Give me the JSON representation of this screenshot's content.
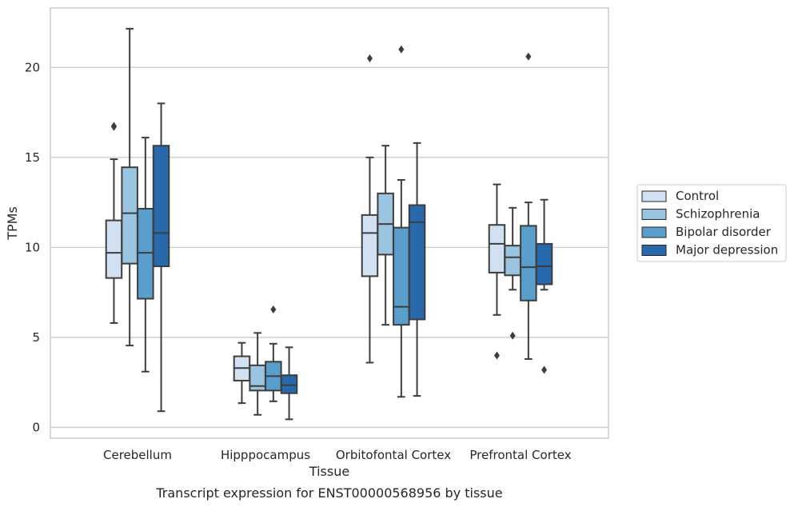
{
  "chart_data": {
    "type": "box",
    "title": "Transcript expression for ENST00000568956 by tissue",
    "xlabel": "Tissue",
    "ylabel": "TPMs",
    "ylim": [
      -0.6,
      23.3
    ],
    "yticks": [
      0,
      5,
      10,
      15,
      20
    ],
    "grid": "horizontal",
    "legend_position": "right",
    "categories": [
      "Cerebellum",
      "Hipppocampus",
      "Orbitofontal Cortex",
      "Prefrontal Cortex"
    ],
    "series": [
      {
        "name": "Control",
        "color": "#d1e1f1",
        "boxes": [
          {
            "whislo": 5.8,
            "q1": 8.3,
            "med": 9.7,
            "q3": 11.5,
            "whishi": 14.9,
            "fliers": [
              16.7,
              16.75
            ]
          },
          {
            "whislo": 1.35,
            "q1": 2.6,
            "med": 3.3,
            "q3": 3.95,
            "whishi": 4.7,
            "fliers": []
          },
          {
            "whislo": 3.6,
            "q1": 8.4,
            "med": 10.8,
            "q3": 11.8,
            "whishi": 15.0,
            "fliers": [
              20.5
            ]
          },
          {
            "whislo": 6.25,
            "q1": 8.6,
            "med": 10.2,
            "q3": 11.25,
            "whishi": 13.5,
            "fliers": [
              4.0
            ]
          }
        ]
      },
      {
        "name": "Schizophrenia",
        "color": "#9ac4e0",
        "boxes": [
          {
            "whislo": 4.55,
            "q1": 9.1,
            "med": 11.9,
            "q3": 14.45,
            "whishi": 22.15,
            "fliers": []
          },
          {
            "whislo": 0.7,
            "q1": 2.05,
            "med": 2.3,
            "q3": 3.45,
            "whishi": 5.25,
            "fliers": []
          },
          {
            "whislo": 5.7,
            "q1": 9.6,
            "med": 11.3,
            "q3": 13.0,
            "whishi": 15.65,
            "fliers": []
          },
          {
            "whislo": 7.65,
            "q1": 8.45,
            "med": 9.45,
            "q3": 10.1,
            "whishi": 12.2,
            "fliers": [
              5.1
            ]
          }
        ]
      },
      {
        "name": "Bipolar disorder",
        "color": "#5a9ecc",
        "boxes": [
          {
            "whislo": 3.1,
            "q1": 7.15,
            "med": 9.7,
            "q3": 12.15,
            "whishi": 16.1,
            "fliers": []
          },
          {
            "whislo": 1.45,
            "q1": 2.05,
            "med": 2.85,
            "q3": 3.65,
            "whishi": 4.65,
            "fliers": [
              6.55
            ]
          },
          {
            "whislo": 1.7,
            "q1": 5.7,
            "med": 6.7,
            "q3": 11.1,
            "whishi": 13.75,
            "fliers": [
              21.0
            ]
          },
          {
            "whislo": 3.8,
            "q1": 7.05,
            "med": 8.9,
            "q3": 11.2,
            "whishi": 12.5,
            "fliers": [
              20.6
            ]
          }
        ]
      },
      {
        "name": "Major depression",
        "color": "#2868ad",
        "boxes": [
          {
            "whislo": 0.9,
            "q1": 8.95,
            "med": 10.8,
            "q3": 15.65,
            "whishi": 18.0,
            "fliers": []
          },
          {
            "whislo": 0.45,
            "q1": 1.9,
            "med": 2.35,
            "q3": 2.9,
            "whishi": 4.45,
            "fliers": []
          },
          {
            "whislo": 1.75,
            "q1": 6.0,
            "med": 11.4,
            "q3": 12.35,
            "whishi": 15.8,
            "fliers": []
          },
          {
            "whislo": 7.65,
            "q1": 7.95,
            "med": 8.95,
            "q3": 10.2,
            "whishi": 12.65,
            "fliers": [
              3.2
            ]
          }
        ]
      }
    ]
  }
}
